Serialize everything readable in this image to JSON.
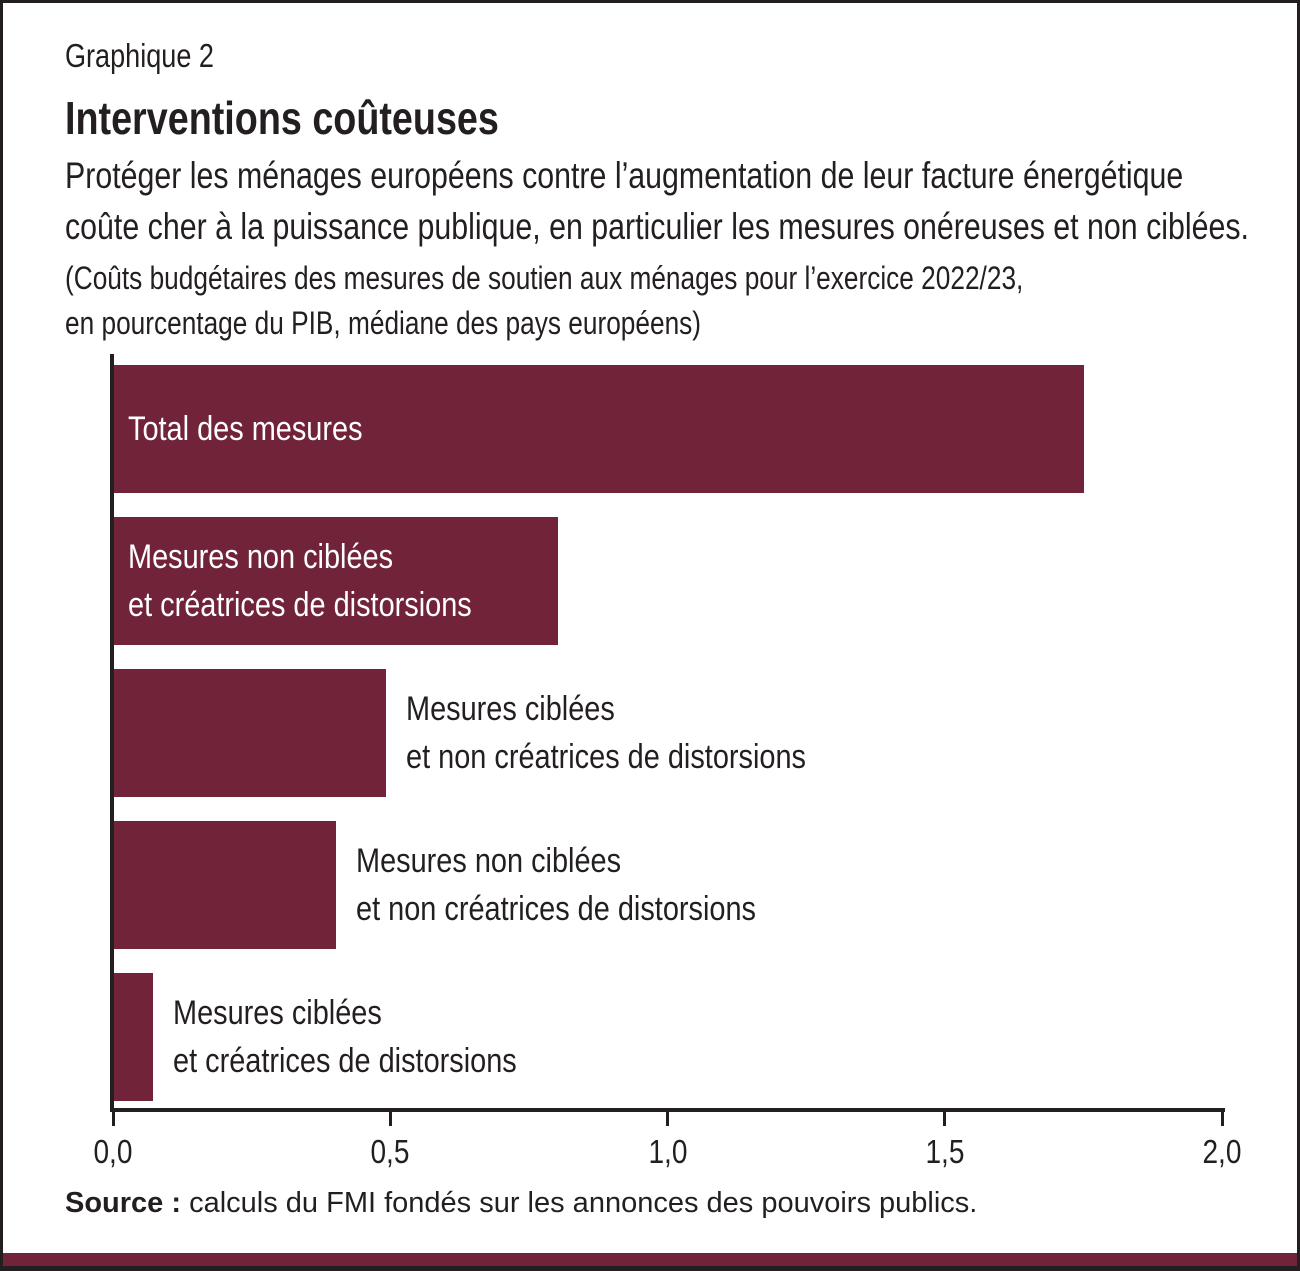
{
  "header": {
    "eyebrow": "Graphique 2",
    "title": "Interventions coûteuses",
    "subtitle_lines": [
      "Protéger les ménages européens contre l’augmentation de leur facture énergétique",
      "coûte cher à la puissance publique, en particulier les mesures onéreuses et non ciblées."
    ],
    "note_lines": [
      "(Coûts budgétaires des mesures de soutien aux ménages pour l’exercice 2022/23,",
      "en pourcentage du PIB, médiane des pays européens)"
    ]
  },
  "chart_data": {
    "type": "bar",
    "orientation": "horizontal",
    "title": "Interventions coûteuses",
    "xlabel": "",
    "ylabel": "",
    "xlim": [
      0,
      2.0
    ],
    "grid": false,
    "legend": false,
    "bar_color": "#702339",
    "categories": [
      "Total des mesures",
      "Mesures non ciblées et créatrices de distorsions",
      "Mesures ciblées et non créatrices de distorsions",
      "Mesures non ciblées et non créatrices de distorsions",
      "Mesures ciblées et créatrices de distorsions"
    ],
    "values": [
      1.75,
      0.8,
      0.49,
      0.4,
      0.07
    ],
    "bars": [
      {
        "label_lines": [
          "Total des mesures"
        ],
        "value": 1.75,
        "label_position": "inside"
      },
      {
        "label_lines": [
          "Mesures non ciblées",
          "et créatrices de distorsions"
        ],
        "value": 0.8,
        "label_position": "inside"
      },
      {
        "label_lines": [
          "Mesures ciblées",
          "et non créatrices de distorsions"
        ],
        "value": 0.49,
        "label_position": "outside"
      },
      {
        "label_lines": [
          "Mesures non ciblées",
          "et non créatrices de distorsions"
        ],
        "value": 0.4,
        "label_position": "outside"
      },
      {
        "label_lines": [
          "Mesures ciblées",
          "et créatrices de distorsions"
        ],
        "value": 0.07,
        "label_position": "outside"
      }
    ],
    "x_ticks": [
      {
        "label": "0,0",
        "value": 0
      },
      {
        "label": "0,5",
        "value": 0.5
      },
      {
        "label": "1,0",
        "value": 1.0
      },
      {
        "label": "1,5",
        "value": 1.5
      },
      {
        "label": "2,0",
        "value": 2.0
      }
    ]
  },
  "source": {
    "label": "Source :",
    "text": " calculs du FMI fondés sur les annonces des pouvoirs publics."
  },
  "footer": {
    "accent_color": "#702339"
  }
}
